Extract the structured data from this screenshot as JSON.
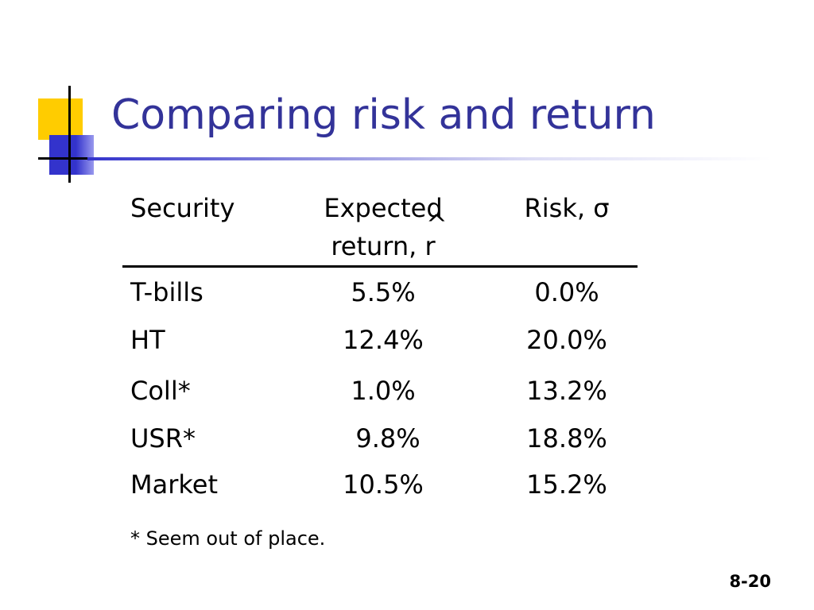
{
  "slide": {
    "title": "Comparing risk and return",
    "slide_number": "8-20"
  },
  "table": {
    "headers": {
      "security": "Security",
      "expected_line1": "Expected",
      "expected_line2": "return, r",
      "expected_hat": "^",
      "risk": "Risk, σ"
    },
    "rows": [
      {
        "security": "T-bills",
        "expected": "5.5%",
        "risk": "0.0%"
      },
      {
        "security": "HT",
        "expected": "12.4%",
        "risk": "20.0%"
      },
      {
        "security": "Coll*",
        "expected": "1.0%",
        "risk": "13.2%"
      },
      {
        "security": "USR*",
        "expected": "9.8%",
        "risk": "18.8%"
      },
      {
        "security": "Market",
        "expected": "10.5%",
        "risk": "15.2%"
      }
    ],
    "footnote": "* Seem out of place."
  },
  "colors": {
    "title": "#333399",
    "accent_yellow": "#ffcc00",
    "accent_blue": "#3333cc"
  }
}
